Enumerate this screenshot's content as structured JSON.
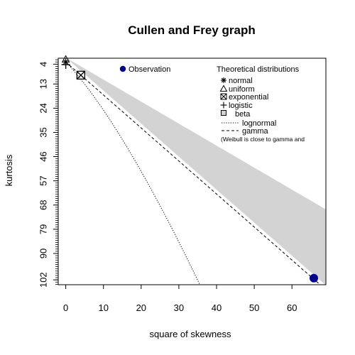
{
  "chart_data": {
    "type": "scatter",
    "title": "Cullen and Frey graph",
    "xlabel": "square of skewness",
    "ylabel": "kurtosis",
    "xlim": [
      -2,
      69
    ],
    "ylim": [
      1.3,
      104.2
    ],
    "y_reversed": true,
    "x_ticks": [
      "0",
      "10",
      "20",
      "30",
      "40",
      "50",
      "60"
    ],
    "y_ticks": [
      "4",
      "13",
      "24",
      "35",
      "46",
      "57",
      "68",
      "79",
      "90",
      "102"
    ],
    "grid": false,
    "legend_position": "top",
    "observation": {
      "label": "Observation",
      "x": 65.8,
      "y": 101.2,
      "color": "#00008b"
    },
    "theoretical_distributions": {
      "heading": "Theoretical distributions",
      "normal": {
        "label": "normal",
        "x": 0,
        "y": 3
      },
      "uniform": {
        "label": "uniform",
        "x": 0,
        "y": 1.8
      },
      "exponential": {
        "label": "exponential",
        "x": 4,
        "y": 9
      },
      "logistic": {
        "label": "logistic",
        "x": 0,
        "y": 4.2
      },
      "beta": {
        "label": "beta",
        "fill": "#d3d3d3"
      },
      "lognormal": {
        "label": "lognormal",
        "line": "dotted"
      },
      "gamma": {
        "label": "gamma",
        "line": "dashed"
      },
      "note": "(Weibull is close to gamma and"
    }
  }
}
